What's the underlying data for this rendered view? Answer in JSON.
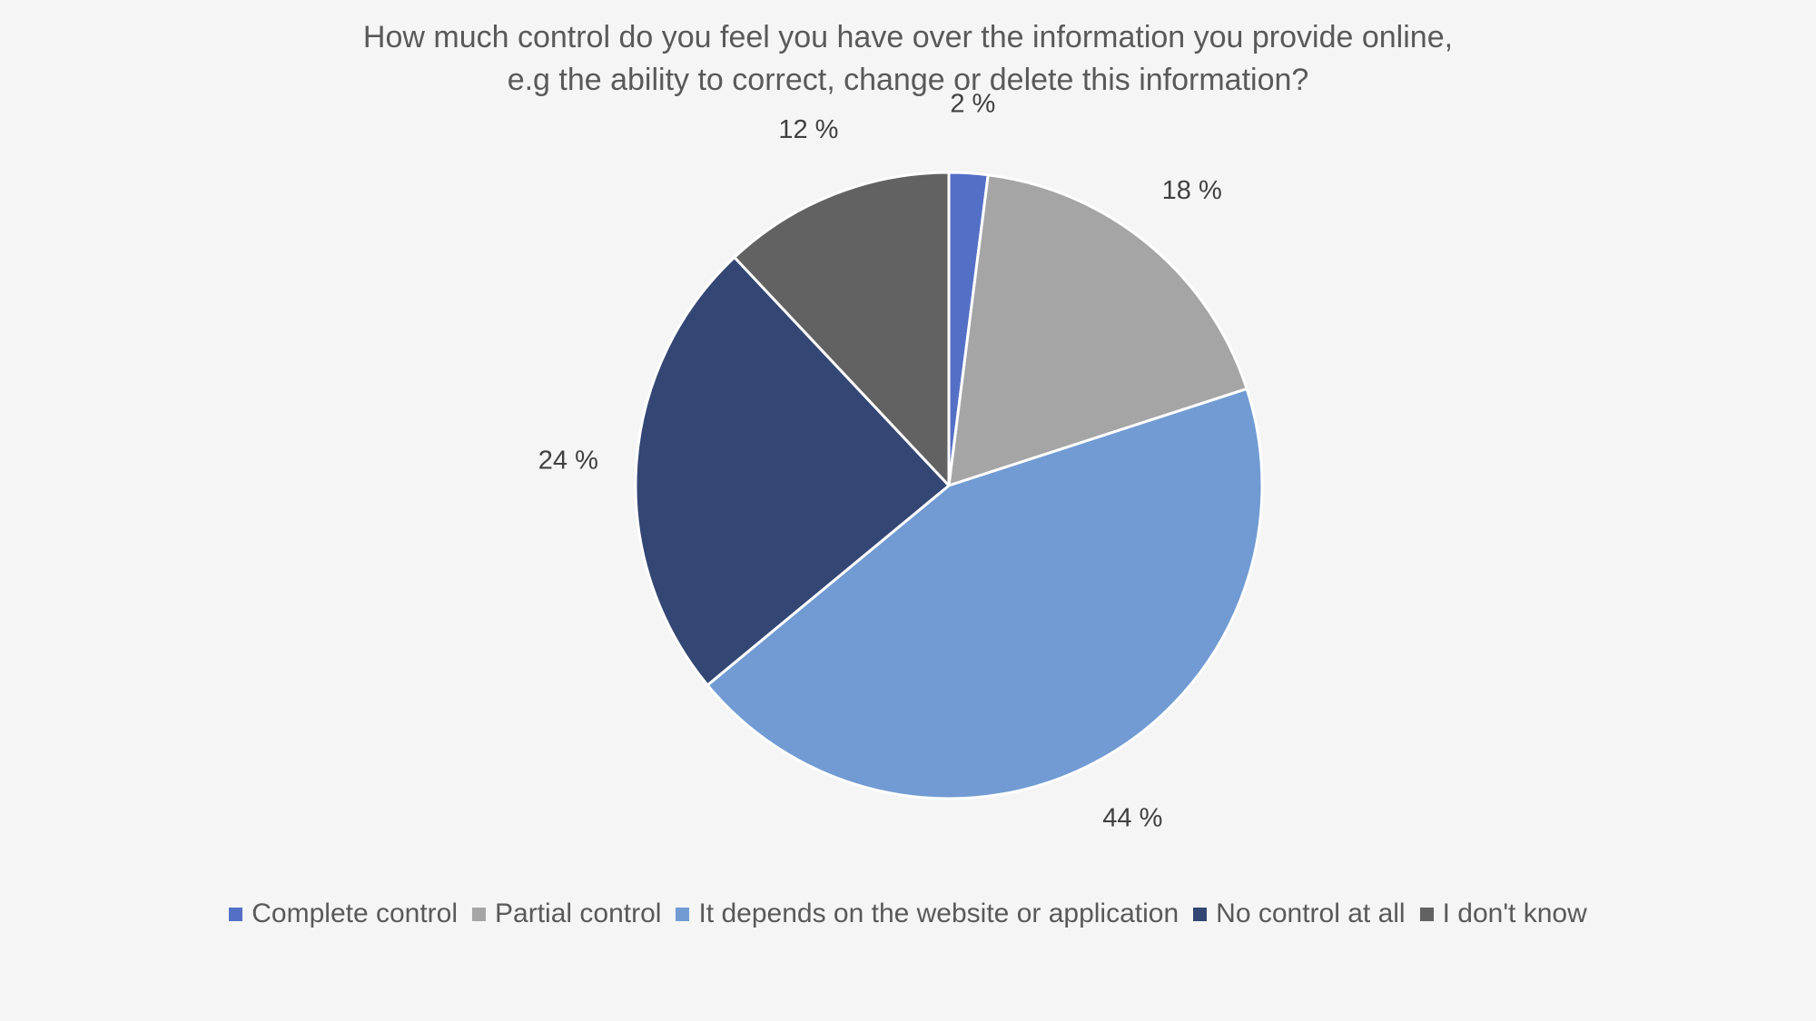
{
  "chart_data": {
    "type": "pie",
    "title_lines": [
      "How much control do you feel you have over the information you provide online,",
      "e.g the ability to correct, change or delete this information?"
    ],
    "unit_suffix": " %",
    "legend_position": "bottom",
    "slices": [
      {
        "label": "Complete control",
        "value": 2,
        "color": "#5470c6"
      },
      {
        "label": "Partial control",
        "value": 18,
        "color": "#a5a5a5"
      },
      {
        "label": "It depends on the website or application",
        "value": 44,
        "color": "#729bd3"
      },
      {
        "label": "No control at all",
        "value": 24,
        "color": "#344674"
      },
      {
        "label": "I don't know",
        "value": 12,
        "color": "#626262"
      }
    ]
  }
}
